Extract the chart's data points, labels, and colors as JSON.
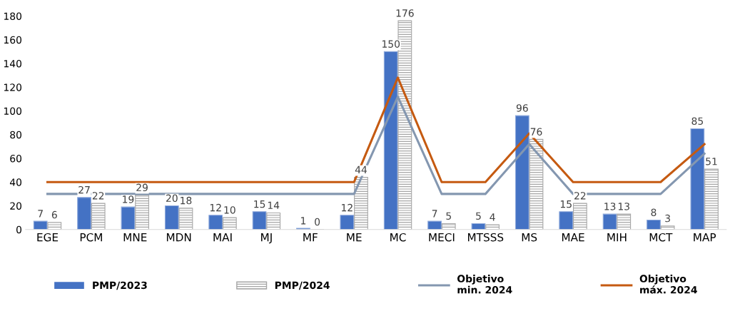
{
  "chart_data": {
    "type": "bar",
    "categories": [
      "EGE",
      "PCM",
      "MNE",
      "MDN",
      "MAI",
      "MJ",
      "MF",
      "ME",
      "MC",
      "MECI",
      "MTSSS",
      "MS",
      "MAE",
      "MIH",
      "MCT",
      "MAP"
    ],
    "series": [
      {
        "name": "PMP/2023",
        "color": "#4472c4",
        "values": [
          7,
          27,
          19,
          20,
          12,
          15,
          1,
          12,
          150,
          7,
          5,
          96,
          15,
          13,
          8,
          85
        ],
        "data_labels": true
      },
      {
        "name": "PMP/2024",
        "color": "#a6a6a6",
        "values": [
          6,
          22,
          29,
          18,
          10,
          14,
          0,
          44,
          176,
          5,
          4,
          76,
          22,
          13,
          3,
          51
        ],
        "data_labels": true
      },
      {
        "name": "Objetivo\nmin. 2024",
        "type": "line",
        "color": "#8497b0",
        "values": [
          30,
          30,
          30,
          30,
          30,
          30,
          30,
          30,
          112,
          30,
          30,
          72,
          30,
          30,
          30,
          64
        ]
      },
      {
        "name": "Objetivo\nmáx. 2024",
        "type": "line",
        "color": "#c55a11",
        "values": [
          40,
          40,
          40,
          40,
          40,
          40,
          40,
          40,
          128,
          40,
          40,
          81,
          40,
          40,
          40,
          72
        ]
      }
    ],
    "ylim": [
      0,
      180
    ],
    "yticks": [
      0,
      20,
      40,
      60,
      80,
      100,
      120,
      140,
      160,
      180
    ],
    "grid": false,
    "legend": "bottom"
  }
}
